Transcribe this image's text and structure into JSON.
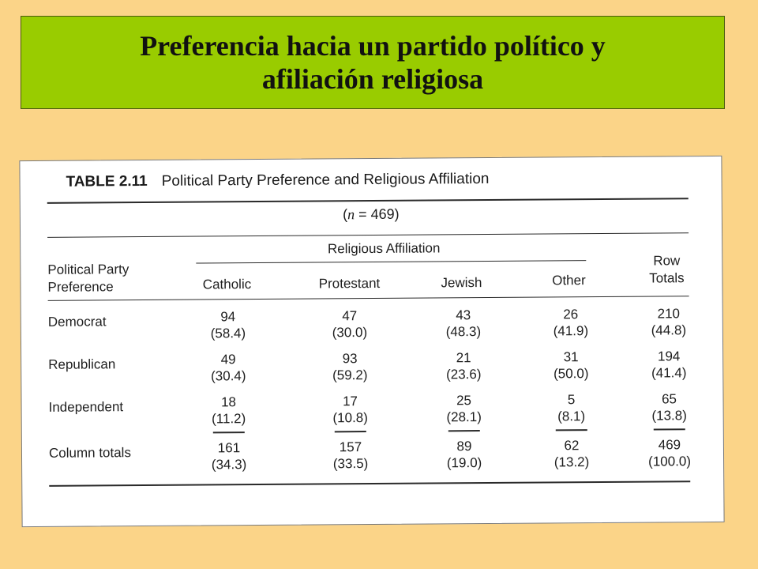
{
  "slide": {
    "title_line1": "Preferencia hacia un partido político y",
    "title_line2": "afiliación religiosa"
  },
  "table": {
    "label": "TABLE 2.11",
    "caption": "Political Party Preference and Religious Affiliation",
    "n_open": "(",
    "n_var": "n",
    "n_rest": " = 469)",
    "group_header": "Religious Affiliation",
    "row_header_line1": "Political Party",
    "row_header_line2": "Preference",
    "columns": [
      "Catholic",
      "Protestant",
      "Jewish",
      "Other"
    ],
    "row_totals_line1": "Row",
    "row_totals_line2": "Totals",
    "rows": [
      {
        "label": "Democrat",
        "cells": [
          {
            "count": "94",
            "pct": "(58.4)"
          },
          {
            "count": "47",
            "pct": "(30.0)"
          },
          {
            "count": "43",
            "pct": "(48.3)"
          },
          {
            "count": "26",
            "pct": "(41.9)"
          },
          {
            "count": "210",
            "pct": "(44.8)"
          }
        ]
      },
      {
        "label": "Republican",
        "cells": [
          {
            "count": "49",
            "pct": "(30.4)"
          },
          {
            "count": "93",
            "pct": "(59.2)"
          },
          {
            "count": "21",
            "pct": "(23.6)"
          },
          {
            "count": "31",
            "pct": "(50.0)"
          },
          {
            "count": "194",
            "pct": "(41.4)"
          }
        ]
      },
      {
        "label": "Independent",
        "cells": [
          {
            "count": "18",
            "pct": "(11.2)"
          },
          {
            "count": "17",
            "pct": "(10.8)"
          },
          {
            "count": "25",
            "pct": "(28.1)"
          },
          {
            "count": "5",
            "pct": "(8.1)"
          },
          {
            "count": "65",
            "pct": "(13.8)"
          }
        ]
      },
      {
        "label": "Column totals",
        "cells": [
          {
            "count": "161",
            "pct": "(34.3)"
          },
          {
            "count": "157",
            "pct": "(33.5)"
          },
          {
            "count": "89",
            "pct": "(19.0)"
          },
          {
            "count": "62",
            "pct": "(13.2)"
          },
          {
            "count": "469",
            "pct": "(100.0)"
          }
        ]
      }
    ]
  }
}
